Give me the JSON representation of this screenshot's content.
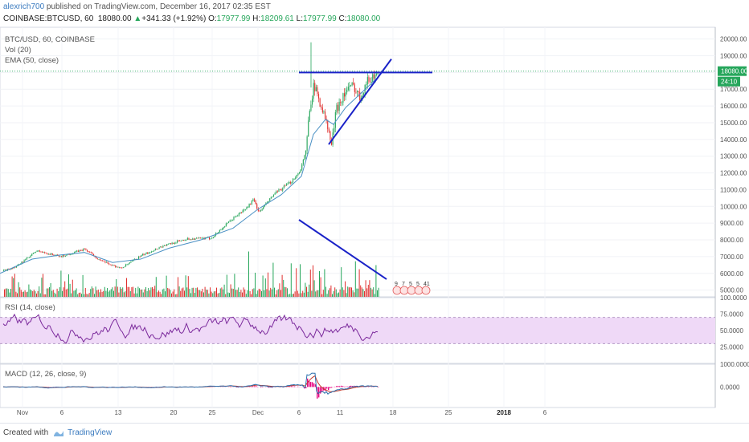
{
  "header": {
    "author": "alexrich700",
    "published_text": " published on TradingView.com, December 16, 2017 02:35 EST",
    "symbol": "COINBASE:BTCUSD, 60",
    "last": "18080.00",
    "change_arrow": "▲",
    "change": "+341.33 (+1.92%)",
    "o_label": "O:",
    "o_value": "17977.99",
    "h_label": "H:",
    "h_value": "18209.61",
    "l_label": "L:",
    "l_value": "17977.99",
    "c_label": "C:",
    "c_value": "18080.00"
  },
  "legends": {
    "main_symbol": "BTC/USD, 60, COINBASE",
    "vol": "Vol (20)",
    "ema": "EMA (50, close)",
    "rsi": "RSI (14, close)",
    "macd": "MACD (12, 26, close, 9)"
  },
  "footer": {
    "created_with": "Created with",
    "brand": "TradingView"
  },
  "colors": {
    "up": "#26a65b",
    "down": "#e0302e",
    "ema": "#4a90c4",
    "trendline": "#1a22c8",
    "rsi": "#7b2a9c",
    "rsi_band": "#efd9f7",
    "macd": "#2b6fad",
    "signal": "#c0392b",
    "macd_hist": "#e6007e",
    "price_label": "#26a65b"
  },
  "chart_data": [
    {
      "type": "line",
      "title": "BTC/USD, 60, COINBASE",
      "x_ticks": [
        "Nov",
        "6",
        "13",
        "20",
        "25",
        "Dec",
        "6",
        "11",
        "18",
        "25",
        "2018",
        "6"
      ],
      "y_ticks": [
        "20000.00",
        "19000.00",
        "18000.00",
        "17000.00",
        "16000.00",
        "15000.00",
        "14000.00",
        "13000.00",
        "12000.00",
        "11000.00",
        "10000.00",
        "9000.00",
        "8000.00",
        "7000.00",
        "6000.00",
        "5000.00"
      ],
      "ylim": [
        4600,
        20700
      ],
      "last_price_label": "18080.00",
      "countdown_label": "24:10",
      "price_path": [
        [
          0,
          6100
        ],
        [
          20,
          6400
        ],
        [
          45,
          7350
        ],
        [
          75,
          7000
        ],
        [
          105,
          7450
        ],
        [
          125,
          6750
        ],
        [
          150,
          6300
        ],
        [
          175,
          7050
        ],
        [
          200,
          7600
        ],
        [
          230,
          8050
        ],
        [
          262,
          8100
        ],
        [
          290,
          9300
        ],
        [
          305,
          9850
        ],
        [
          315,
          10400
        ],
        [
          322,
          9650
        ],
        [
          340,
          10700
        ],
        [
          360,
          11400
        ],
        [
          372,
          12050
        ],
        [
          380,
          13200
        ],
        [
          385,
          16050
        ],
        [
          390,
          17200
        ],
        [
          398,
          16200
        ],
        [
          405,
          15100
        ],
        [
          412,
          13700
        ],
        [
          418,
          15800
        ],
        [
          425,
          16500
        ],
        [
          432,
          17000
        ],
        [
          440,
          17200
        ],
        [
          447,
          16500
        ],
        [
          455,
          17400
        ],
        [
          462,
          17700
        ],
        [
          470,
          18100
        ]
      ],
      "ema_path": [
        [
          0,
          6000
        ],
        [
          40,
          6850
        ],
        [
          75,
          7100
        ],
        [
          105,
          7250
        ],
        [
          140,
          6650
        ],
        [
          175,
          6850
        ],
        [
          210,
          7500
        ],
        [
          250,
          8000
        ],
        [
          290,
          8700
        ],
        [
          320,
          9800
        ],
        [
          350,
          10700
        ],
        [
          375,
          11800
        ],
        [
          390,
          14300
        ],
        [
          405,
          15200
        ],
        [
          415,
          14900
        ],
        [
          430,
          15900
        ],
        [
          450,
          16800
        ],
        [
          470,
          17700
        ]
      ],
      "trendlines": [
        {
          "name": "resistance",
          "points": [
            [
              372,
              18000
            ],
            [
              538,
              18000
            ]
          ]
        },
        {
          "name": "support",
          "points": [
            [
              409,
              13700
            ],
            [
              487,
              18800
            ]
          ]
        },
        {
          "name": "volume-trend",
          "points": [
            [
              372,
              9200
            ],
            [
              481,
              5650
            ]
          ]
        }
      ]
    },
    {
      "type": "line",
      "title": "RSI (14, close)",
      "y_ticks": [
        "100.0000",
        "75.0000",
        "50.0000",
        "25.0000"
      ],
      "ylim": [
        0,
        100
      ],
      "band": [
        30,
        70
      ],
      "last_value_label": "75.0000"
    },
    {
      "type": "line",
      "title": "MACD (12, 26, close, 9)",
      "y_ticks": [
        "1000.0000",
        "0.0000"
      ],
      "ylim": [
        -900,
        1000
      ]
    }
  ],
  "badges": [
    "9",
    "7",
    "5",
    "5",
    "41"
  ]
}
